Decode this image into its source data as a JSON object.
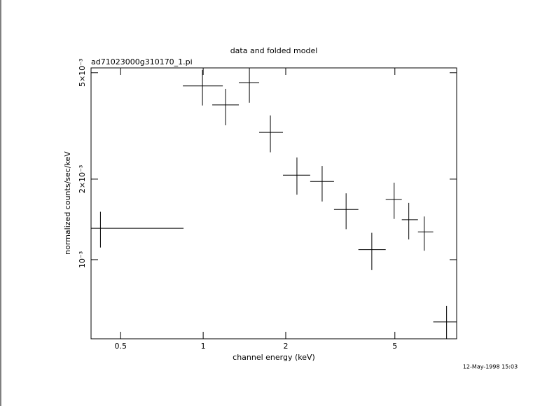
{
  "chart_data": {
    "type": "scatter",
    "title": "data and folded model",
    "subtitle": "ad71023000g310170_1.pi",
    "x_label": "channel energy (keV)",
    "y_label": "normalized counts/sec/keV",
    "timestamp": "12-May-1998 15:03",
    "log_x": true,
    "log_y": true,
    "color": "#000000",
    "x": [
      0.422,
      0.994,
      1.207,
      1.474,
      1.758,
      2.197,
      2.715,
      3.32,
      4.12,
      4.97,
      5.62,
      6.4,
      7.72
    ],
    "xlo": [
      0.39,
      0.843,
      1.079,
      1.349,
      1.6,
      1.954,
      2.456,
      3.0,
      3.68,
      4.63,
      5.3,
      6.07,
      6.9
    ],
    "xhi": [
      0.848,
      1.179,
      1.349,
      1.6,
      1.954,
      2.456,
      3.0,
      3.68,
      4.63,
      5.3,
      6.07,
      6.9,
      8.4
    ],
    "values": [
      0.00131,
      0.00446,
      0.00379,
      0.00459,
      0.00299,
      0.00207,
      0.00196,
      0.00154,
      0.00109,
      0.00168,
      0.00141,
      0.00127,
      0.000585
    ],
    "ylo": [
      0.00111,
      0.00377,
      0.00318,
      0.00386,
      0.00252,
      0.00175,
      0.00165,
      0.0013,
      0.000914,
      0.00142,
      0.00119,
      0.00108,
      0.000506
    ],
    "yhi": [
      0.00151,
      0.00512,
      0.00435,
      0.00521,
      0.00346,
      0.00241,
      0.00224,
      0.00177,
      0.00126,
      0.00194,
      0.00163,
      0.00145,
      0.000672
    ],
    "xlim": [
      0.39,
      8.4
    ],
    "ylim": [
      0.000506,
      0.00521
    ],
    "xticks": [
      0.5,
      1,
      2,
      5
    ],
    "yticks": [
      {
        "value": 0.001,
        "label": "10⁻³"
      },
      {
        "value": 0.002,
        "label": "2×10⁻³"
      },
      {
        "value": 0.005,
        "label": "5×10⁻³"
      }
    ]
  }
}
